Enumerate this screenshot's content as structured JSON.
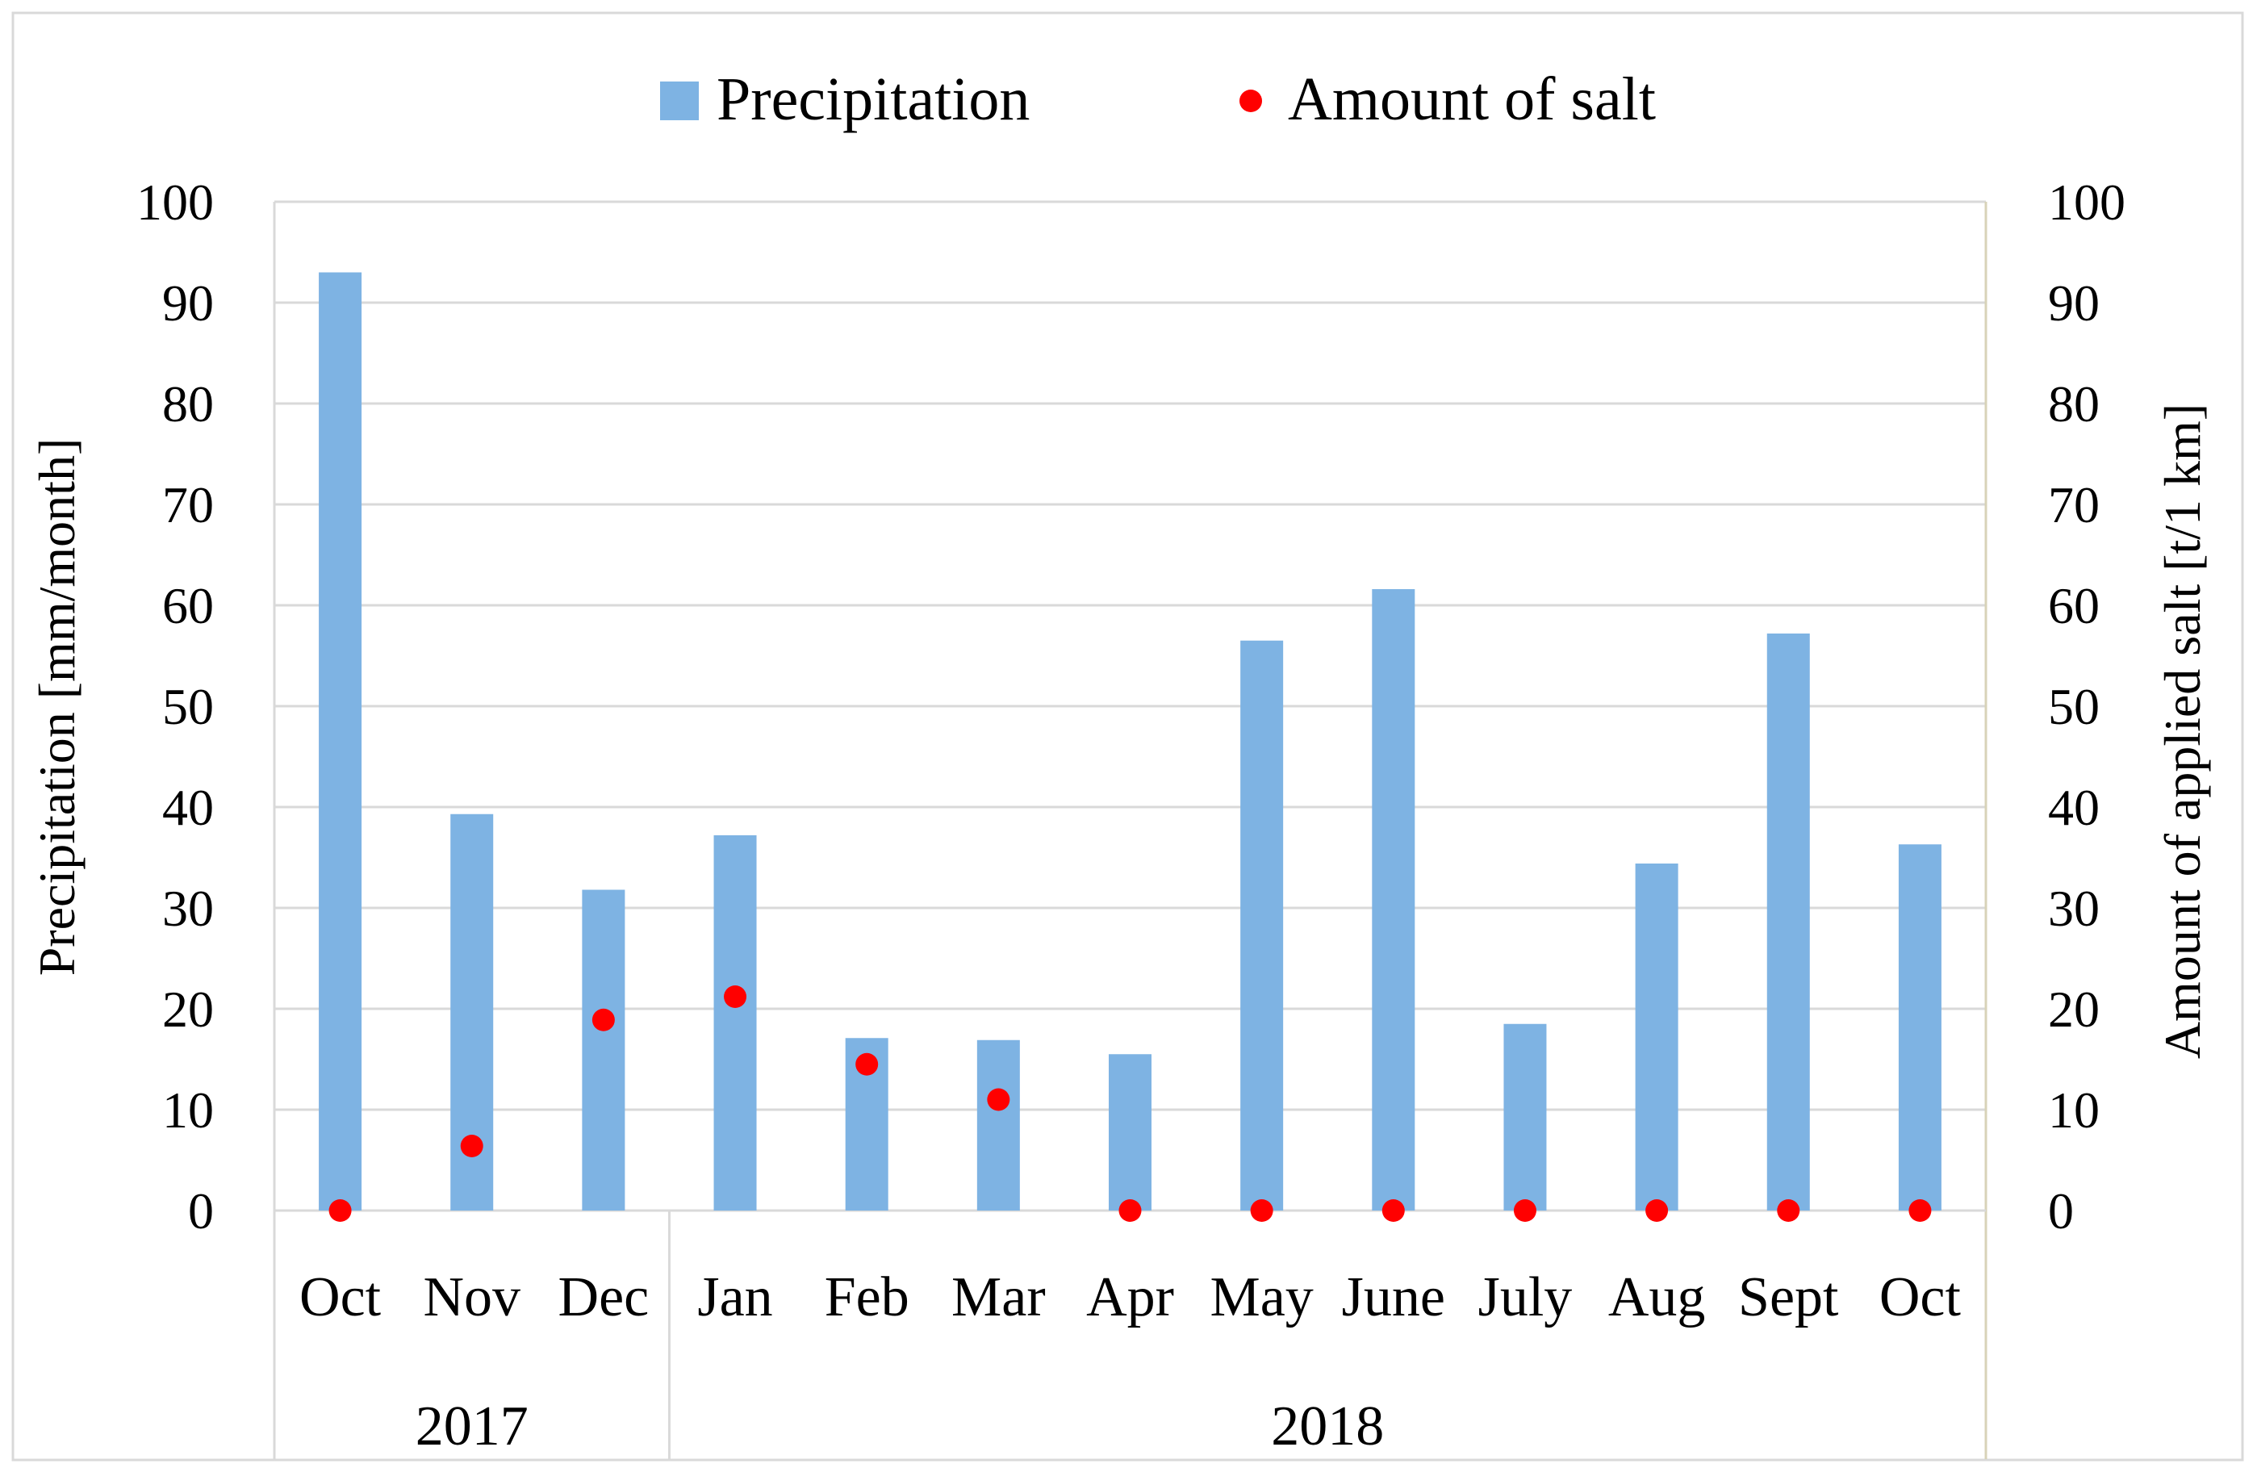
{
  "chart_data": {
    "type": "bar",
    "categories": [
      "Oct",
      "Nov",
      "Dec",
      "Jan",
      "Feb",
      "Mar",
      "Apr",
      "May",
      "June",
      "July",
      "Aug",
      "Sept",
      "Oct"
    ],
    "groups": [
      {
        "label": "2017",
        "span": 3
      },
      {
        "label": "2018",
        "span": 10
      }
    ],
    "series": [
      {
        "name": "Precipitation",
        "kind": "bar",
        "axis": "left",
        "color": "#7EB3E3",
        "values": [
          93,
          39.3,
          31.8,
          37.2,
          17.1,
          16.9,
          15.5,
          56.5,
          61.6,
          18.5,
          34.4,
          57.2,
          36.3
        ]
      },
      {
        "name": "Amount of salt",
        "kind": "scatter",
        "axis": "right",
        "color": "#FF0000",
        "values": [
          0,
          6.4,
          18.9,
          21.2,
          14.5,
          11.0,
          0,
          0,
          0,
          0,
          0,
          0,
          0
        ]
      }
    ],
    "title": "",
    "xlabel": "",
    "ylabel": "Precipitation [mm/month]",
    "y2label": "Amount of applied salt [t/1 km]",
    "ylim": [
      0,
      100
    ],
    "y2lim": [
      0,
      100
    ],
    "yticks": [
      0,
      10,
      20,
      30,
      40,
      50,
      60,
      70,
      80,
      90,
      100
    ],
    "y2ticks": [
      0,
      10,
      20,
      30,
      40,
      50,
      60,
      70,
      80,
      90,
      100
    ],
    "grid": true,
    "legend_position": "top"
  }
}
